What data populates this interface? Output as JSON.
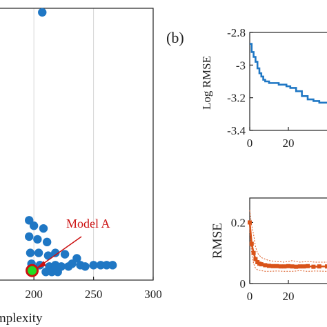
{
  "figure": {
    "panel_b_label": "(b)"
  },
  "colors": {
    "blue": "#1f77c4",
    "orange": "#d95319",
    "red": "#cc1111",
    "green": "#22dd22"
  },
  "chart_data": [
    {
      "type": "scatter",
      "xlabel": "mplexity",
      "xlim": [
        160,
        300
      ],
      "ylim": [
        0,
        1
      ],
      "x_ticks": [
        {
          "v": 200,
          "t": "200"
        },
        {
          "v": 250,
          "t": "250"
        },
        {
          "v": 300,
          "t": "300"
        }
      ],
      "grid": true,
      "points": [
        {
          "x": 207,
          "y": 0.985
        },
        {
          "x": 196,
          "y": 0.22
        },
        {
          "x": 200,
          "y": 0.2
        },
        {
          "x": 208,
          "y": 0.19
        },
        {
          "x": 196,
          "y": 0.16
        },
        {
          "x": 203,
          "y": 0.15
        },
        {
          "x": 211,
          "y": 0.14
        },
        {
          "x": 197,
          "y": 0.1
        },
        {
          "x": 204,
          "y": 0.1
        },
        {
          "x": 212,
          "y": 0.09
        },
        {
          "x": 218,
          "y": 0.1
        },
        {
          "x": 226,
          "y": 0.095
        },
        {
          "x": 236,
          "y": 0.08
        },
        {
          "x": 198,
          "y": 0.06
        },
        {
          "x": 205,
          "y": 0.055
        },
        {
          "x": 213,
          "y": 0.05
        },
        {
          "x": 218,
          "y": 0.055
        },
        {
          "x": 223,
          "y": 0.05
        },
        {
          "x": 229,
          "y": 0.05
        },
        {
          "x": 232,
          "y": 0.06
        },
        {
          "x": 239,
          "y": 0.055
        },
        {
          "x": 243,
          "y": 0.05
        },
        {
          "x": 250,
          "y": 0.055
        },
        {
          "x": 256,
          "y": 0.055
        },
        {
          "x": 261,
          "y": 0.055
        },
        {
          "x": 266,
          "y": 0.055
        },
        {
          "x": 199,
          "y": 0.035
        },
        {
          "x": 210,
          "y": 0.03
        },
        {
          "x": 215,
          "y": 0.03
        },
        {
          "x": 220,
          "y": 0.03
        }
      ],
      "highlight": {
        "x": 198.5,
        "y": 0.035,
        "label": "Model A"
      }
    },
    {
      "type": "line",
      "ylabel": "Log RMSE",
      "xlim": [
        0,
        40
      ],
      "ylim": [
        -3.4,
        -2.8
      ],
      "x_ticks": [
        {
          "v": 0,
          "t": "0"
        },
        {
          "v": 20,
          "t": "20"
        }
      ],
      "y_ticks": [
        {
          "v": -2.8,
          "t": "-2.8"
        },
        {
          "v": -3.0,
          "t": "-3"
        },
        {
          "v": -3.2,
          "t": "-3.2"
        },
        {
          "v": -3.4,
          "t": "-3.4"
        }
      ],
      "series": [
        {
          "x": [
            0,
            1,
            2,
            3,
            4,
            5,
            6,
            7,
            8,
            10,
            13,
            15,
            17,
            19,
            21,
            24,
            27,
            30,
            33,
            36,
            40
          ],
          "y": [
            -2.87,
            -2.92,
            -2.95,
            -2.98,
            -3.02,
            -3.05,
            -3.07,
            -3.09,
            -3.1,
            -3.11,
            -3.11,
            -3.12,
            -3.12,
            -3.13,
            -3.14,
            -3.16,
            -3.19,
            -3.21,
            -3.22,
            -3.23,
            -3.23
          ]
        }
      ]
    },
    {
      "type": "line",
      "ylabel": "RMSE",
      "xlim": [
        0,
        40
      ],
      "ylim": [
        0,
        0.28
      ],
      "x_ticks": [
        {
          "v": 0,
          "t": "0"
        },
        {
          "v": 20,
          "t": "20"
        }
      ],
      "y_ticks": [
        {
          "v": 0,
          "t": "0"
        },
        {
          "v": 0.2,
          "t": "0.2"
        }
      ],
      "series": [
        {
          "x": [
            0,
            1,
            2,
            3,
            4,
            5,
            6,
            8,
            10,
            12,
            14,
            16,
            18,
            20,
            22,
            24,
            26,
            28,
            30,
            33,
            36,
            40
          ],
          "y": [
            0.2,
            0.13,
            0.1,
            0.08,
            0.07,
            0.065,
            0.063,
            0.06,
            0.058,
            0.057,
            0.057,
            0.056,
            0.056,
            0.057,
            0.056,
            0.055,
            0.056,
            0.056,
            0.057,
            0.055,
            0.056,
            0.056
          ]
        },
        {
          "x": [
            0,
            1,
            2,
            3,
            4,
            6,
            8,
            10,
            14,
            18,
            22,
            26,
            30,
            34,
            40
          ],
          "y": [
            0.24,
            0.19,
            0.16,
            0.12,
            0.1,
            0.085,
            0.08,
            0.075,
            0.072,
            0.07,
            0.075,
            0.07,
            0.072,
            0.07,
            0.07
          ]
        },
        {
          "x": [
            0,
            1,
            2,
            3,
            4,
            6,
            8,
            10,
            14,
            18,
            22,
            26,
            30,
            34,
            40
          ],
          "y": [
            0.17,
            0.1,
            0.065,
            0.05,
            0.045,
            0.042,
            0.04,
            0.04,
            0.041,
            0.04,
            0.04,
            0.042,
            0.04,
            0.041,
            0.04
          ]
        }
      ]
    }
  ]
}
